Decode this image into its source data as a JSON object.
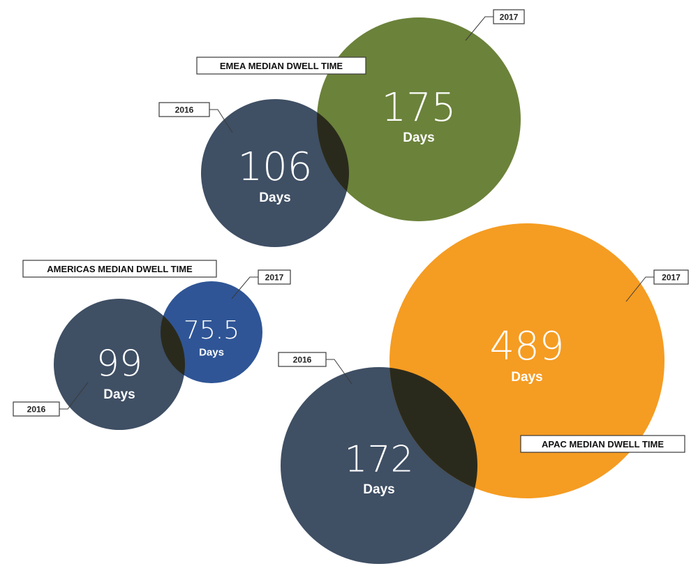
{
  "chart_data": [
    {
      "type": "bubble",
      "title": "EMEA MEDIAN DWELL TIME",
      "unit": "Days",
      "points": [
        {
          "year": "2016",
          "value": 106,
          "label": "106",
          "color": "#3f4f64"
        },
        {
          "year": "2017",
          "value": 175,
          "label": "175",
          "color": "#6b823a"
        }
      ]
    },
    {
      "type": "bubble",
      "title": "AMERICAS MEDIAN DWELL TIME",
      "unit": "Days",
      "points": [
        {
          "year": "2016",
          "value": 99,
          "label": "99",
          "color": "#3f4f64"
        },
        {
          "year": "2017",
          "value": 75.5,
          "label": "75.5",
          "color": "#2f5596"
        }
      ]
    },
    {
      "type": "bubble",
      "title": "APAC MEDIAN DWELL TIME",
      "unit": "Days",
      "points": [
        {
          "year": "2016",
          "value": 172,
          "label": "172",
          "color": "#3f4f64"
        },
        {
          "year": "2017",
          "value": 489,
          "label": "489",
          "color": "#f59c22"
        }
      ]
    }
  ],
  "overlap_color": "#2a2a1c"
}
